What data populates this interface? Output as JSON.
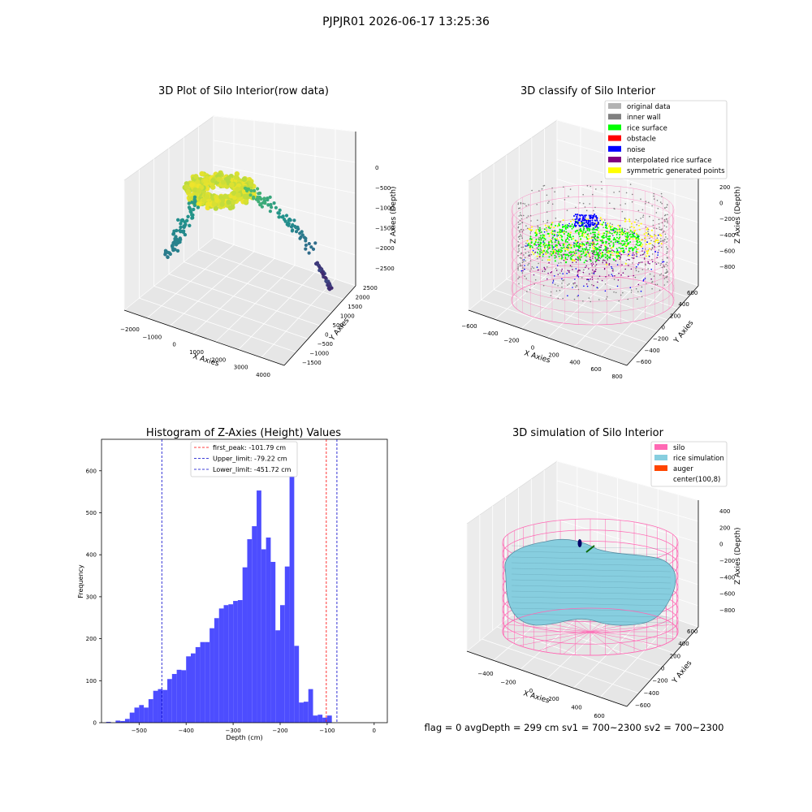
{
  "figure": {
    "suptitle": "PJPJR01 2026-06-17 13:25:36",
    "status_text": "flag = 0     avgDepth = 299 cm  sv1 = 700~2300  sv2 = 700~2300"
  },
  "colors": {
    "hist_bar": "#4d4dff",
    "first_peak_line": "#ff0000",
    "limit_line": "#0000cc",
    "silo": "#ff69b4",
    "rice_simulation": "#87cedf",
    "auger": "#ff4500",
    "original_data": "#b3b3b3",
    "inner_wall": "#808080",
    "rice_surface": "#00ff00",
    "obstacle": "#ff0000",
    "noise": "#0000ff",
    "interpolated_rice_surface": "#800080",
    "symmetric_generated_points": "#ffff00"
  },
  "chart_data": [
    {
      "type": "scatter",
      "title": "3D Plot of Silo Interior(row data)",
      "xlabel": "X Axies",
      "ylabel": "Y Axies",
      "zlabel": "Z Axies (Depth)",
      "xticks": [
        "−2000",
        "−1000",
        "0",
        "1000",
        "2000",
        "3000",
        "4000"
      ],
      "yticks": [
        "−1500",
        "−1000",
        "−500",
        "0",
        "500",
        "1000",
        "1500",
        "2000",
        "2500"
      ],
      "zticks": [
        "0",
        "−500",
        "−1000",
        "−1500",
        "−2000",
        "−2500"
      ],
      "xlim": [
        -2400,
        4500
      ],
      "ylim": [
        -1700,
        2600
      ],
      "zlim": [
        -2800,
        100
      ],
      "colormap": "viridis"
    },
    {
      "type": "scatter",
      "title": "3D classify of Silo Interior",
      "xlabel": "X Axies",
      "ylabel": "Y Axies",
      "zlabel": "Z Axies (Depth)",
      "xticks": [
        "−600",
        "−400",
        "−200",
        "0",
        "200",
        "400",
        "600",
        "800"
      ],
      "yticks": [
        "−600",
        "−400",
        "−200",
        "0",
        "200",
        "400",
        "600"
      ],
      "zticks": [
        "200",
        "0",
        "−200",
        "−400",
        "−600",
        "−800"
      ],
      "xlim": [
        -650,
        850
      ],
      "ylim": [
        -700,
        700
      ],
      "zlim": [
        -900,
        300
      ],
      "legend": {
        "position": "upper-right",
        "entries": [
          {
            "label": "original data",
            "color": "#b3b3b3"
          },
          {
            "label": "inner wall",
            "color": "#808080"
          },
          {
            "label": "rice surface",
            "color": "#00ff00"
          },
          {
            "label": "obstacle",
            "color": "#ff0000"
          },
          {
            "label": "noise",
            "color": "#0000ff"
          },
          {
            "label": "interpolated rice surface",
            "color": "#800080"
          },
          {
            "label": "symmetric generated points",
            "color": "#ffff00"
          }
        ]
      }
    },
    {
      "type": "bar",
      "title": "Histogram of Z-Axies (Height) Values",
      "xlabel": "Depth (cm)",
      "ylabel": "Frequency",
      "xlim": [
        -580,
        28
      ],
      "ylim": [
        0,
        675
      ],
      "xticks": [
        -500,
        -400,
        -300,
        -200,
        -100,
        0
      ],
      "xtick_labels": [
        "−500",
        "−400",
        "−300",
        "−200",
        "−100",
        "0"
      ],
      "yticks": [
        0,
        100,
        200,
        300,
        400,
        500,
        600
      ],
      "bin_start": -570,
      "bin_width": 10,
      "values": [
        2,
        0,
        5,
        4,
        9,
        24,
        36,
        42,
        36,
        56,
        76,
        80,
        78,
        104,
        116,
        126,
        125,
        158,
        165,
        180,
        192,
        192,
        225,
        249,
        272,
        280,
        282,
        290,
        292,
        370,
        437,
        468,
        553,
        413,
        441,
        383,
        220,
        280,
        372,
        642,
        183,
        48,
        50,
        80,
        17,
        19,
        12,
        17
      ],
      "vlines": [
        {
          "label": "first_peak: -101.79 cm",
          "x": -101.79,
          "color": "#ff0000"
        },
        {
          "label": "Upper_limit: -79.22 cm",
          "x": -79.22,
          "color": "#0000cc"
        },
        {
          "label": "Lower_limit: -451.72 cm",
          "x": -451.72,
          "color": "#0000cc"
        }
      ],
      "legend": {
        "position": "upper-center"
      }
    },
    {
      "type": "surface",
      "title": "3D simulation of Silo Interior",
      "xlabel": "X Axies",
      "ylabel": "Y Axies",
      "zlabel": "Z Axies (Depth)",
      "xticks": [
        "−400",
        "−200",
        "0",
        "200",
        "400",
        "600"
      ],
      "yticks": [
        "−600",
        "−400",
        "−200",
        "0",
        "200",
        "400",
        "600"
      ],
      "zticks": [
        "400",
        "200",
        "0",
        "−200",
        "−400",
        "−600",
        "−800"
      ],
      "xlim": [
        -550,
        700
      ],
      "ylim": [
        -700,
        700
      ],
      "zlim": [
        -900,
        450
      ],
      "legend": {
        "position": "upper-right",
        "entries": [
          {
            "label": "silo",
            "color": "#ff69b4"
          },
          {
            "label": "rice simulation",
            "color": "#87cedf"
          },
          {
            "label": "auger",
            "color": "#ff4500"
          },
          {
            "label": "center(100,8)",
            "color": ""
          }
        ]
      }
    }
  ]
}
